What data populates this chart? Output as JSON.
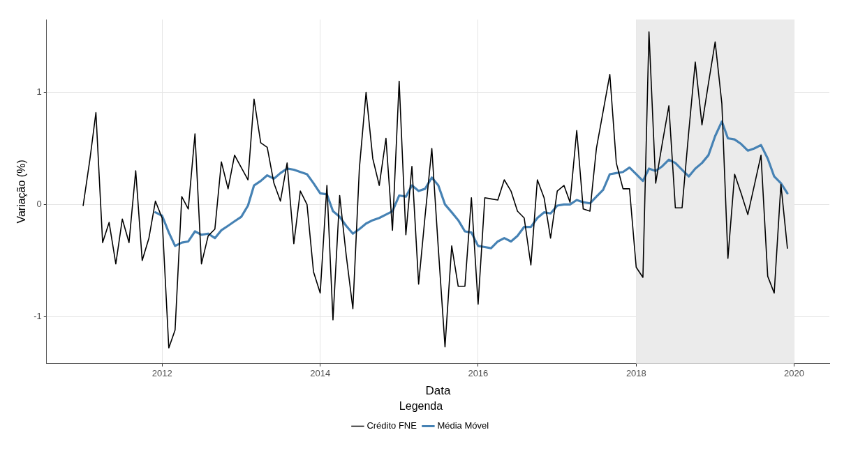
{
  "chart_data": {
    "type": "line",
    "xlabel": "Data",
    "ylabel": "Variação (%)",
    "legend_title": "Legenda",
    "legend": "bottom",
    "grid": true,
    "line_style": "solid",
    "marker": "none",
    "x": [
      "2011-01",
      "2011-02",
      "2011-03",
      "2011-04",
      "2011-05",
      "2011-06",
      "2011-07",
      "2011-08",
      "2011-09",
      "2011-10",
      "2011-11",
      "2011-12",
      "2012-01",
      "2012-02",
      "2012-03",
      "2012-04",
      "2012-05",
      "2012-06",
      "2012-07",
      "2012-08",
      "2012-09",
      "2012-10",
      "2012-11",
      "2012-12",
      "2013-01",
      "2013-02",
      "2013-03",
      "2013-04",
      "2013-05",
      "2013-06",
      "2013-07",
      "2013-08",
      "2013-09",
      "2013-10",
      "2013-11",
      "2013-12",
      "2014-01",
      "2014-02",
      "2014-03",
      "2014-04",
      "2014-05",
      "2014-06",
      "2014-07",
      "2014-08",
      "2014-09",
      "2014-10",
      "2014-11",
      "2014-12",
      "2015-01",
      "2015-02",
      "2015-03",
      "2015-04",
      "2015-05",
      "2015-06",
      "2015-07",
      "2015-08",
      "2015-09",
      "2015-10",
      "2015-11",
      "2015-12",
      "2016-01",
      "2016-02",
      "2016-03",
      "2016-04",
      "2016-05",
      "2016-06",
      "2016-07",
      "2016-08",
      "2016-09",
      "2016-10",
      "2016-11",
      "2016-12",
      "2017-01",
      "2017-02",
      "2017-03",
      "2017-04",
      "2017-05",
      "2017-06",
      "2017-07",
      "2017-08",
      "2017-09",
      "2017-10",
      "2017-11",
      "2017-12",
      "2018-01",
      "2018-02",
      "2018-03",
      "2018-04",
      "2018-05",
      "2018-06",
      "2018-07",
      "2018-08",
      "2018-09",
      "2018-10",
      "2018-11",
      "2018-12",
      "2019-01",
      "2019-02",
      "2019-03",
      "2019-04",
      "2019-05",
      "2019-06",
      "2019-07",
      "2019-08",
      "2019-09",
      "2019-10",
      "2019-11",
      "2019-12"
    ],
    "series": [
      {
        "name": "Crédito FNE",
        "color": "#000000",
        "values": [
          -0.01,
          0.4,
          0.82,
          -0.34,
          -0.16,
          -0.53,
          -0.13,
          -0.34,
          0.3,
          -0.5,
          -0.3,
          0.03,
          -0.12,
          -1.28,
          -1.12,
          0.07,
          -0.04,
          0.63,
          -0.53,
          -0.28,
          -0.22,
          0.38,
          0.14,
          0.44,
          0.33,
          0.22,
          0.94,
          0.55,
          0.51,
          0.19,
          0.03,
          0.37,
          -0.35,
          0.12,
          0.0,
          -0.6,
          -0.79,
          0.17,
          -1.03,
          0.08,
          -0.45,
          -0.93,
          0.32,
          1.0,
          0.41,
          0.17,
          0.59,
          -0.23,
          1.1,
          -0.27,
          0.34,
          -0.71,
          -0.1,
          0.5,
          -0.39,
          -1.27,
          -0.37,
          -0.73,
          -0.73,
          0.06,
          -0.89,
          0.06,
          0.05,
          0.04,
          0.22,
          0.12,
          -0.06,
          -0.12,
          -0.54,
          0.22,
          0.06,
          -0.3,
          0.12,
          0.17,
          0.02,
          0.66,
          -0.04,
          -0.06,
          0.5,
          0.83,
          1.16,
          0.37,
          0.14,
          0.14,
          -0.56,
          -0.65,
          1.54,
          0.19,
          0.54,
          0.88,
          -0.03,
          -0.03,
          0.65,
          1.27,
          0.71,
          1.08,
          1.45,
          0.9,
          -0.48,
          0.27,
          0.1,
          -0.09,
          0.17,
          0.44,
          -0.64,
          -0.79,
          0.18,
          -0.39
        ]
      },
      {
        "name": "Média Móvel",
        "color": "#4682b4",
        "values": [
          null,
          null,
          null,
          null,
          null,
          null,
          null,
          null,
          null,
          null,
          null,
          -0.07,
          -0.1,
          -0.25,
          -0.37,
          -0.34,
          -0.33,
          -0.24,
          -0.27,
          -0.26,
          -0.3,
          -0.23,
          -0.19,
          -0.15,
          -0.11,
          -0.01,
          0.17,
          0.21,
          0.26,
          0.23,
          0.28,
          0.32,
          0.31,
          0.29,
          0.27,
          0.19,
          0.1,
          0.09,
          -0.06,
          -0.11,
          -0.19,
          -0.26,
          -0.22,
          -0.17,
          -0.14,
          -0.12,
          -0.09,
          -0.06,
          0.08,
          0.07,
          0.17,
          0.12,
          0.14,
          0.24,
          0.17,
          0.0,
          -0.07,
          -0.14,
          -0.24,
          -0.25,
          -0.37,
          -0.38,
          -0.39,
          -0.33,
          -0.3,
          -0.33,
          -0.28,
          -0.2,
          -0.2,
          -0.12,
          -0.07,
          -0.08,
          -0.01,
          0.0,
          0.0,
          0.04,
          0.02,
          0.01,
          0.07,
          0.13,
          0.27,
          0.28,
          0.29,
          0.33,
          0.27,
          0.21,
          0.32,
          0.3,
          0.34,
          0.4,
          0.37,
          0.31,
          0.25,
          0.32,
          0.37,
          0.44,
          0.61,
          0.74,
          0.59,
          0.58,
          0.54,
          0.48,
          0.5,
          0.53,
          0.41,
          0.25,
          0.19,
          0.1
        ]
      }
    ],
    "xlim": [
      "2010-07-16",
      "2020-06-12"
    ],
    "xticks": [
      "2012",
      "2014",
      "2016",
      "2018",
      "2020"
    ],
    "ylim": [
      -1.42,
      1.65
    ],
    "yticks": [
      -1,
      0,
      1
    ],
    "bands": [
      {
        "axis": "x",
        "from": "2018-01",
        "to": "2020-01",
        "color": "#ebebeb"
      }
    ]
  }
}
